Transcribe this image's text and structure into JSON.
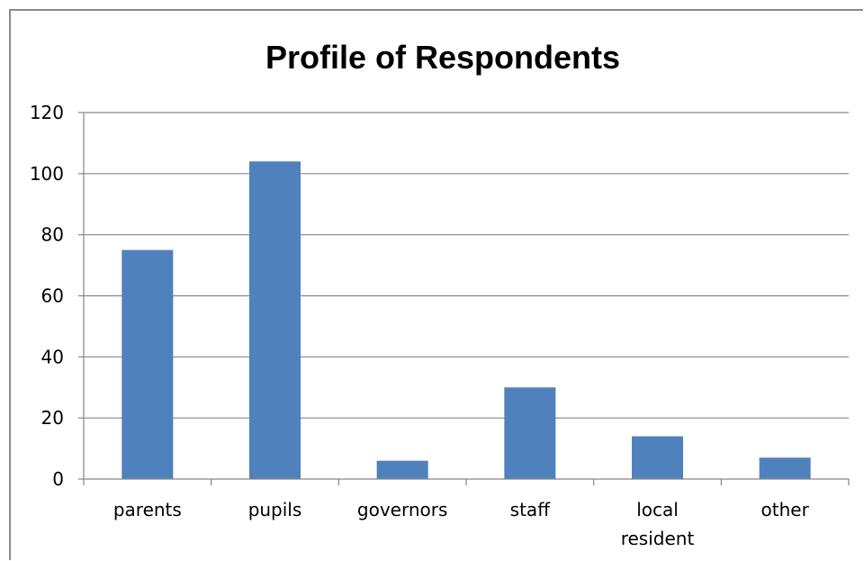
{
  "chart_data": {
    "type": "bar",
    "title": "Profile of Respondents",
    "categories": [
      "parents",
      "pupils",
      "governors",
      "staff",
      "local resident",
      "other"
    ],
    "category_lines": [
      [
        "parents"
      ],
      [
        "pupils"
      ],
      [
        "governors"
      ],
      [
        "staff"
      ],
      [
        "local",
        "resident"
      ],
      [
        "other"
      ]
    ],
    "values": [
      75,
      104,
      6,
      30,
      14,
      7
    ],
    "xlabel": "",
    "ylabel": "",
    "ylim": [
      0,
      120
    ],
    "yticks": [
      0,
      20,
      40,
      60,
      80,
      100,
      120
    ],
    "grid": true,
    "legend": "none",
    "bar_color": "#4f81bd",
    "grid_color": "#868686"
  }
}
